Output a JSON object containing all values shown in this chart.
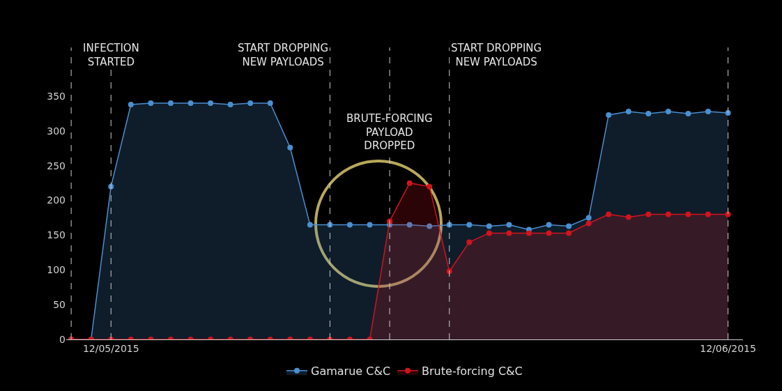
{
  "chart_data": {
    "type": "area",
    "x": [
      "2015-05-10",
      "2015-05-11",
      "2015-05-12",
      "2015-05-13",
      "2015-05-14",
      "2015-05-15",
      "2015-05-16",
      "2015-05-17",
      "2015-05-18",
      "2015-05-19",
      "2015-05-20",
      "2015-05-21",
      "2015-05-22",
      "2015-05-23",
      "2015-05-24",
      "2015-05-25",
      "2015-05-26",
      "2015-05-27",
      "2015-05-28",
      "2015-05-29",
      "2015-05-30",
      "2015-05-31",
      "2015-06-01",
      "2015-06-02",
      "2015-06-03",
      "2015-06-04",
      "2015-06-05",
      "2015-06-06",
      "2015-06-07",
      "2015-06-08",
      "2015-06-09",
      "2015-06-10",
      "2015-06-11",
      "2015-06-12"
    ],
    "series": [
      {
        "name": "Gamarue C&C",
        "color": "#4a8fd0",
        "values": [
          0,
          0,
          220,
          338,
          340,
          340,
          340,
          340,
          338,
          340,
          340,
          276,
          165,
          165,
          165,
          165,
          165,
          165,
          163,
          165,
          165,
          163,
          165,
          158,
          165,
          163,
          175,
          323,
          328,
          325,
          328,
          325,
          328,
          326
        ]
      },
      {
        "name": "Brute-forcing C&C",
        "color": "#d0141e",
        "values": [
          0,
          0,
          0,
          0,
          0,
          0,
          0,
          0,
          0,
          0,
          0,
          0,
          0,
          0,
          0,
          0,
          170,
          225,
          220,
          98,
          140,
          153,
          153,
          153,
          153,
          153,
          167,
          180,
          176,
          180,
          180,
          180,
          180,
          180
        ]
      }
    ],
    "xlim": [
      "2015-05-09T18:00",
      "2015-06-12T18:00"
    ],
    "xticks": [
      {
        "value": "2015-05-12",
        "label": "12/05/2015"
      },
      {
        "value": "2015-06-12",
        "label": "12/06/2015"
      }
    ],
    "ylim": [
      0,
      350
    ],
    "yticks": [
      0,
      50,
      100,
      150,
      200,
      250,
      300,
      350
    ],
    "ref_lines": [
      {
        "axis": "x",
        "value": "2015-05-10",
        "label": null,
        "line_style": "dashed",
        "color": "#cccccc"
      },
      {
        "axis": "x",
        "value": "2015-05-12",
        "label": "INFECTION\nSTARTED",
        "line_style": "dashed",
        "color": "#cccccc"
      },
      {
        "axis": "x",
        "value": "2015-05-23",
        "label": "START DROPPING\nNEW PAYLOADS",
        "line_style": "dashed",
        "color": "#cccccc"
      },
      {
        "axis": "x",
        "value": "2015-05-26",
        "label": "BRUTE-FORCING\nPAYLOAD\nDROPPED",
        "line_style": "dashed",
        "color": "#cccccc"
      },
      {
        "axis": "x",
        "value": "2015-05-29",
        "label": "START DROPPING\nNEW PAYLOADS",
        "line_style": "dashed",
        "color": "#cccccc"
      },
      {
        "axis": "x",
        "value": "2015-06-12",
        "label": null,
        "line_style": "dashed",
        "color": "#cccccc"
      }
    ],
    "grid": false,
    "legend": "bottom",
    "marker": "circle",
    "line_style": "solid"
  }
}
